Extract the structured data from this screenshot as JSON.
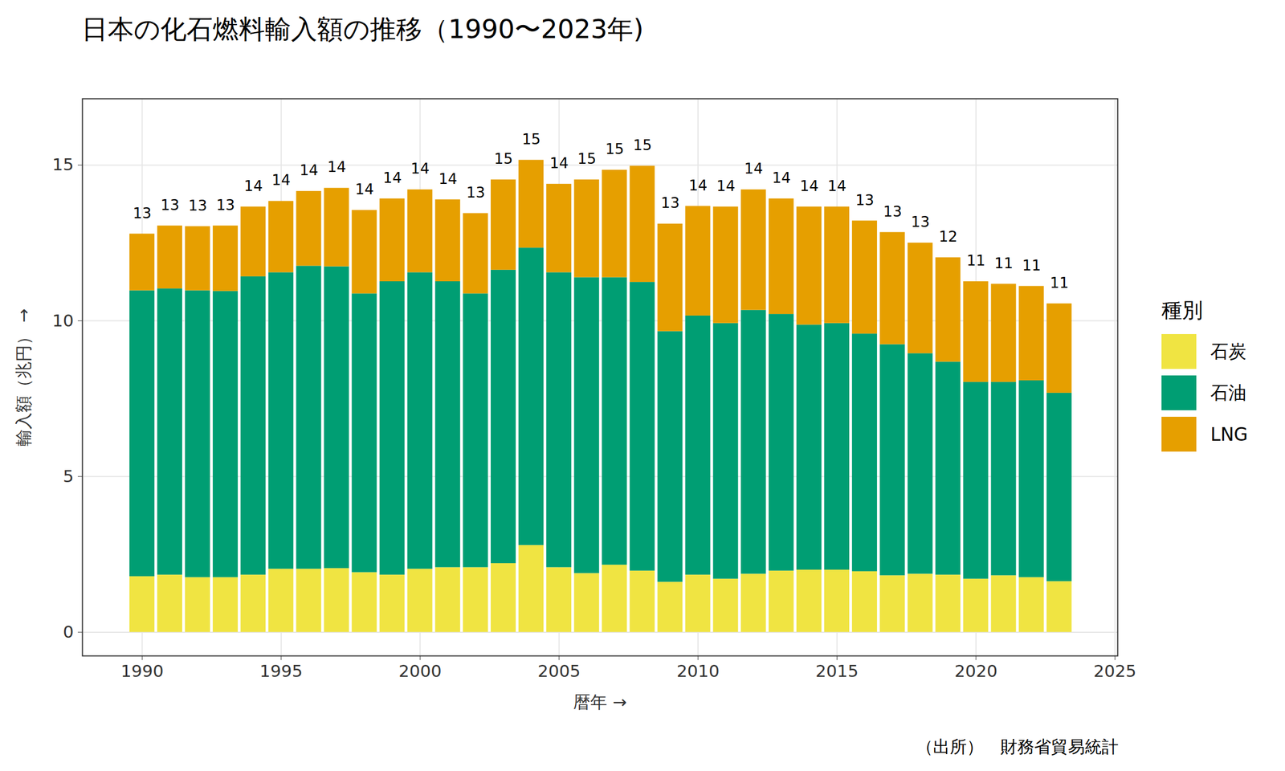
{
  "chart_data": {
    "type": "bar",
    "title": "日本の化石燃料輸入額の推移（1990〜2023年)",
    "x_label": "暦年",
    "y_label": "輸入額（兆円）",
    "caption": "（出所）　財務省貿易統計",
    "legend_title": "種別",
    "legend": "right",
    "stacked": true,
    "grid": true,
    "x": [
      1990,
      1991,
      1992,
      1993,
      1994,
      1995,
      1996,
      1997,
      1998,
      1999,
      2000,
      2001,
      2002,
      2003,
      2004,
      2005,
      2006,
      2007,
      2008,
      2009,
      2010,
      2011,
      2012,
      2013,
      2014,
      2015,
      2016,
      2017,
      2018,
      2019,
      2020,
      2021,
      2022,
      2023
    ],
    "series": [
      {
        "name": "石炭",
        "color": "#F0E442",
        "values": [
          1.79,
          1.84,
          1.76,
          1.76,
          1.84,
          2.03,
          2.03,
          2.05,
          1.92,
          1.84,
          2.03,
          2.08,
          2.08,
          2.21,
          2.79,
          2.08,
          1.89,
          2.16,
          1.97,
          1.61,
          1.84,
          1.71,
          1.87,
          1.97,
          2.0,
          2.0,
          1.95,
          1.82,
          1.87,
          1.84,
          1.71,
          1.82,
          1.76,
          1.63
        ]
      },
      {
        "name": "石油",
        "color": "#009E73",
        "values": [
          9.18,
          9.19,
          9.21,
          9.19,
          9.58,
          9.52,
          9.73,
          9.69,
          8.95,
          9.42,
          9.52,
          9.18,
          8.79,
          9.42,
          9.55,
          9.47,
          9.5,
          9.23,
          9.27,
          8.05,
          8.32,
          8.21,
          8.47,
          8.24,
          7.87,
          7.92,
          7.63,
          7.42,
          7.08,
          6.84,
          6.32,
          6.21,
          6.32,
          6.05
        ]
      },
      {
        "name": "LNG",
        "color": "#E69F00",
        "values": [
          1.82,
          2.02,
          2.06,
          2.1,
          2.24,
          2.29,
          2.4,
          2.52,
          2.68,
          2.66,
          2.66,
          2.63,
          2.58,
          2.9,
          2.82,
          2.84,
          3.14,
          3.45,
          3.73,
          3.45,
          3.52,
          3.74,
          3.87,
          3.71,
          3.79,
          3.74,
          3.63,
          3.6,
          3.55,
          3.35,
          3.23,
          3.15,
          3.03,
          2.87
        ]
      }
    ],
    "totals": [
      13,
      13,
      13,
      13,
      14,
      14,
      14,
      14,
      14,
      14,
      14,
      14,
      13,
      15,
      15,
      14,
      15,
      15,
      15,
      13,
      14,
      14,
      14,
      14,
      14,
      14,
      13,
      13,
      13,
      12,
      11,
      11,
      11,
      11
    ],
    "xlim": [
      1987.85,
      2025.1
    ],
    "xticks": [
      1990,
      1995,
      2000,
      2005,
      2010,
      2015,
      2020,
      2025
    ],
    "ylim": [
      -0.76,
      17.13
    ],
    "yticks": [
      0,
      5,
      10,
      15
    ]
  }
}
